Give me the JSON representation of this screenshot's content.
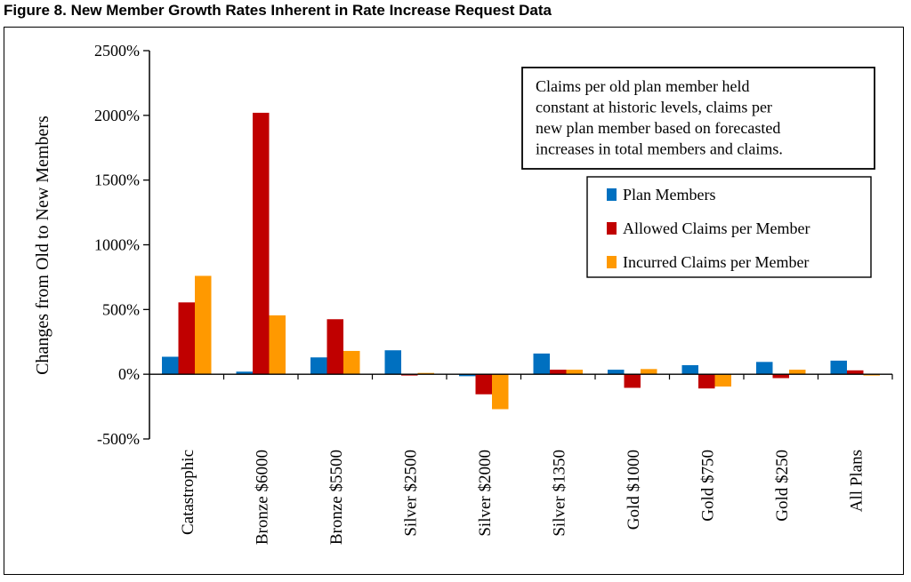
{
  "figure_title": "Figure 8.  New Member Growth Rates Inherent in Rate Increase Request Data",
  "annotation_lines": [
    "Claims per old plan member held",
    "constant at historic levels, claims per",
    "new plan member based on forecasted",
    "increases in total members and claims."
  ],
  "colors": {
    "Plan Members": "#0070C0",
    "Allowed Claims per Member": "#C00000",
    "Incurred Claims per Member": "#FF9900"
  },
  "chart_data": {
    "type": "bar",
    "ylabel": "Changes from Old to New Members",
    "xlabel": "",
    "ylim": [
      -500,
      2500
    ],
    "yticks": [
      -500,
      0,
      500,
      1000,
      1500,
      2000,
      2500
    ],
    "ytick_labels": [
      "-500%",
      "0%",
      "500%",
      "1000%",
      "1500%",
      "2000%",
      "2500%"
    ],
    "categories": [
      "Catastrophic",
      "Bronze $6000",
      "Bronze $5500",
      "Silver $2500",
      "Silver $2000",
      "Silver $1350",
      "Gold $1000",
      "Gold $750",
      "Gold $250",
      "All Plans"
    ],
    "series": [
      {
        "name": "Plan Members",
        "values": [
          135,
          20,
          130,
          185,
          -15,
          160,
          35,
          70,
          95,
          105
        ]
      },
      {
        "name": "Allowed Claims per Member",
        "values": [
          555,
          2020,
          425,
          -10,
          -155,
          35,
          -105,
          -110,
          -30,
          30
        ]
      },
      {
        "name": "Incurred Claims per Member",
        "values": [
          760,
          455,
          180,
          10,
          -270,
          35,
          40,
          -95,
          35,
          -10
        ]
      }
    ],
    "legend_position": "top-right",
    "grid": false
  }
}
